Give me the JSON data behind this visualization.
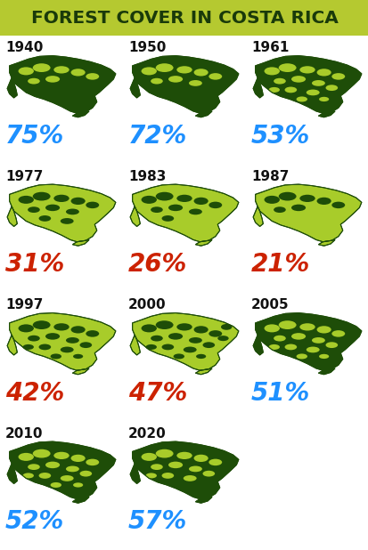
{
  "title": "FOREST COVER IN COSTA RICA",
  "title_bg": "#b5c930",
  "title_color": "#1a3a0a",
  "bg_color": "#ffffff",
  "years": [
    {
      "year": "1940",
      "pct": "75%",
      "color": "#1e90ff",
      "row": 0,
      "col": 0,
      "forest_ratio": 0.75
    },
    {
      "year": "1950",
      "pct": "72%",
      "color": "#1e90ff",
      "row": 0,
      "col": 1,
      "forest_ratio": 0.72
    },
    {
      "year": "1961",
      "pct": "53%",
      "color": "#1e90ff",
      "row": 0,
      "col": 2,
      "forest_ratio": 0.53
    },
    {
      "year": "1977",
      "pct": "31%",
      "color": "#cc2200",
      "row": 1,
      "col": 0,
      "forest_ratio": 0.31
    },
    {
      "year": "1983",
      "pct": "26%",
      "color": "#cc2200",
      "row": 1,
      "col": 1,
      "forest_ratio": 0.26
    },
    {
      "year": "1987",
      "pct": "21%",
      "color": "#cc2200",
      "row": 1,
      "col": 2,
      "forest_ratio": 0.21
    },
    {
      "year": "1997",
      "pct": "42%",
      "color": "#cc2200",
      "row": 2,
      "col": 0,
      "forest_ratio": 0.42
    },
    {
      "year": "2000",
      "pct": "47%",
      "color": "#cc2200",
      "row": 2,
      "col": 1,
      "forest_ratio": 0.47
    },
    {
      "year": "2005",
      "pct": "51%",
      "color": "#1e90ff",
      "row": 2,
      "col": 2,
      "forest_ratio": 0.51
    },
    {
      "year": "2010",
      "pct": "52%",
      "color": "#1e90ff",
      "row": 3,
      "col": 0,
      "forest_ratio": 0.52
    },
    {
      "year": "2020",
      "pct": "57%",
      "color": "#1e90ff",
      "row": 3,
      "col": 1,
      "forest_ratio": 0.57
    }
  ],
  "dark_green": "#1e4d08",
  "light_green": "#a8cc2a",
  "year_color": "#111111",
  "year_fontsize": 11,
  "pct_fontsize": 20
}
